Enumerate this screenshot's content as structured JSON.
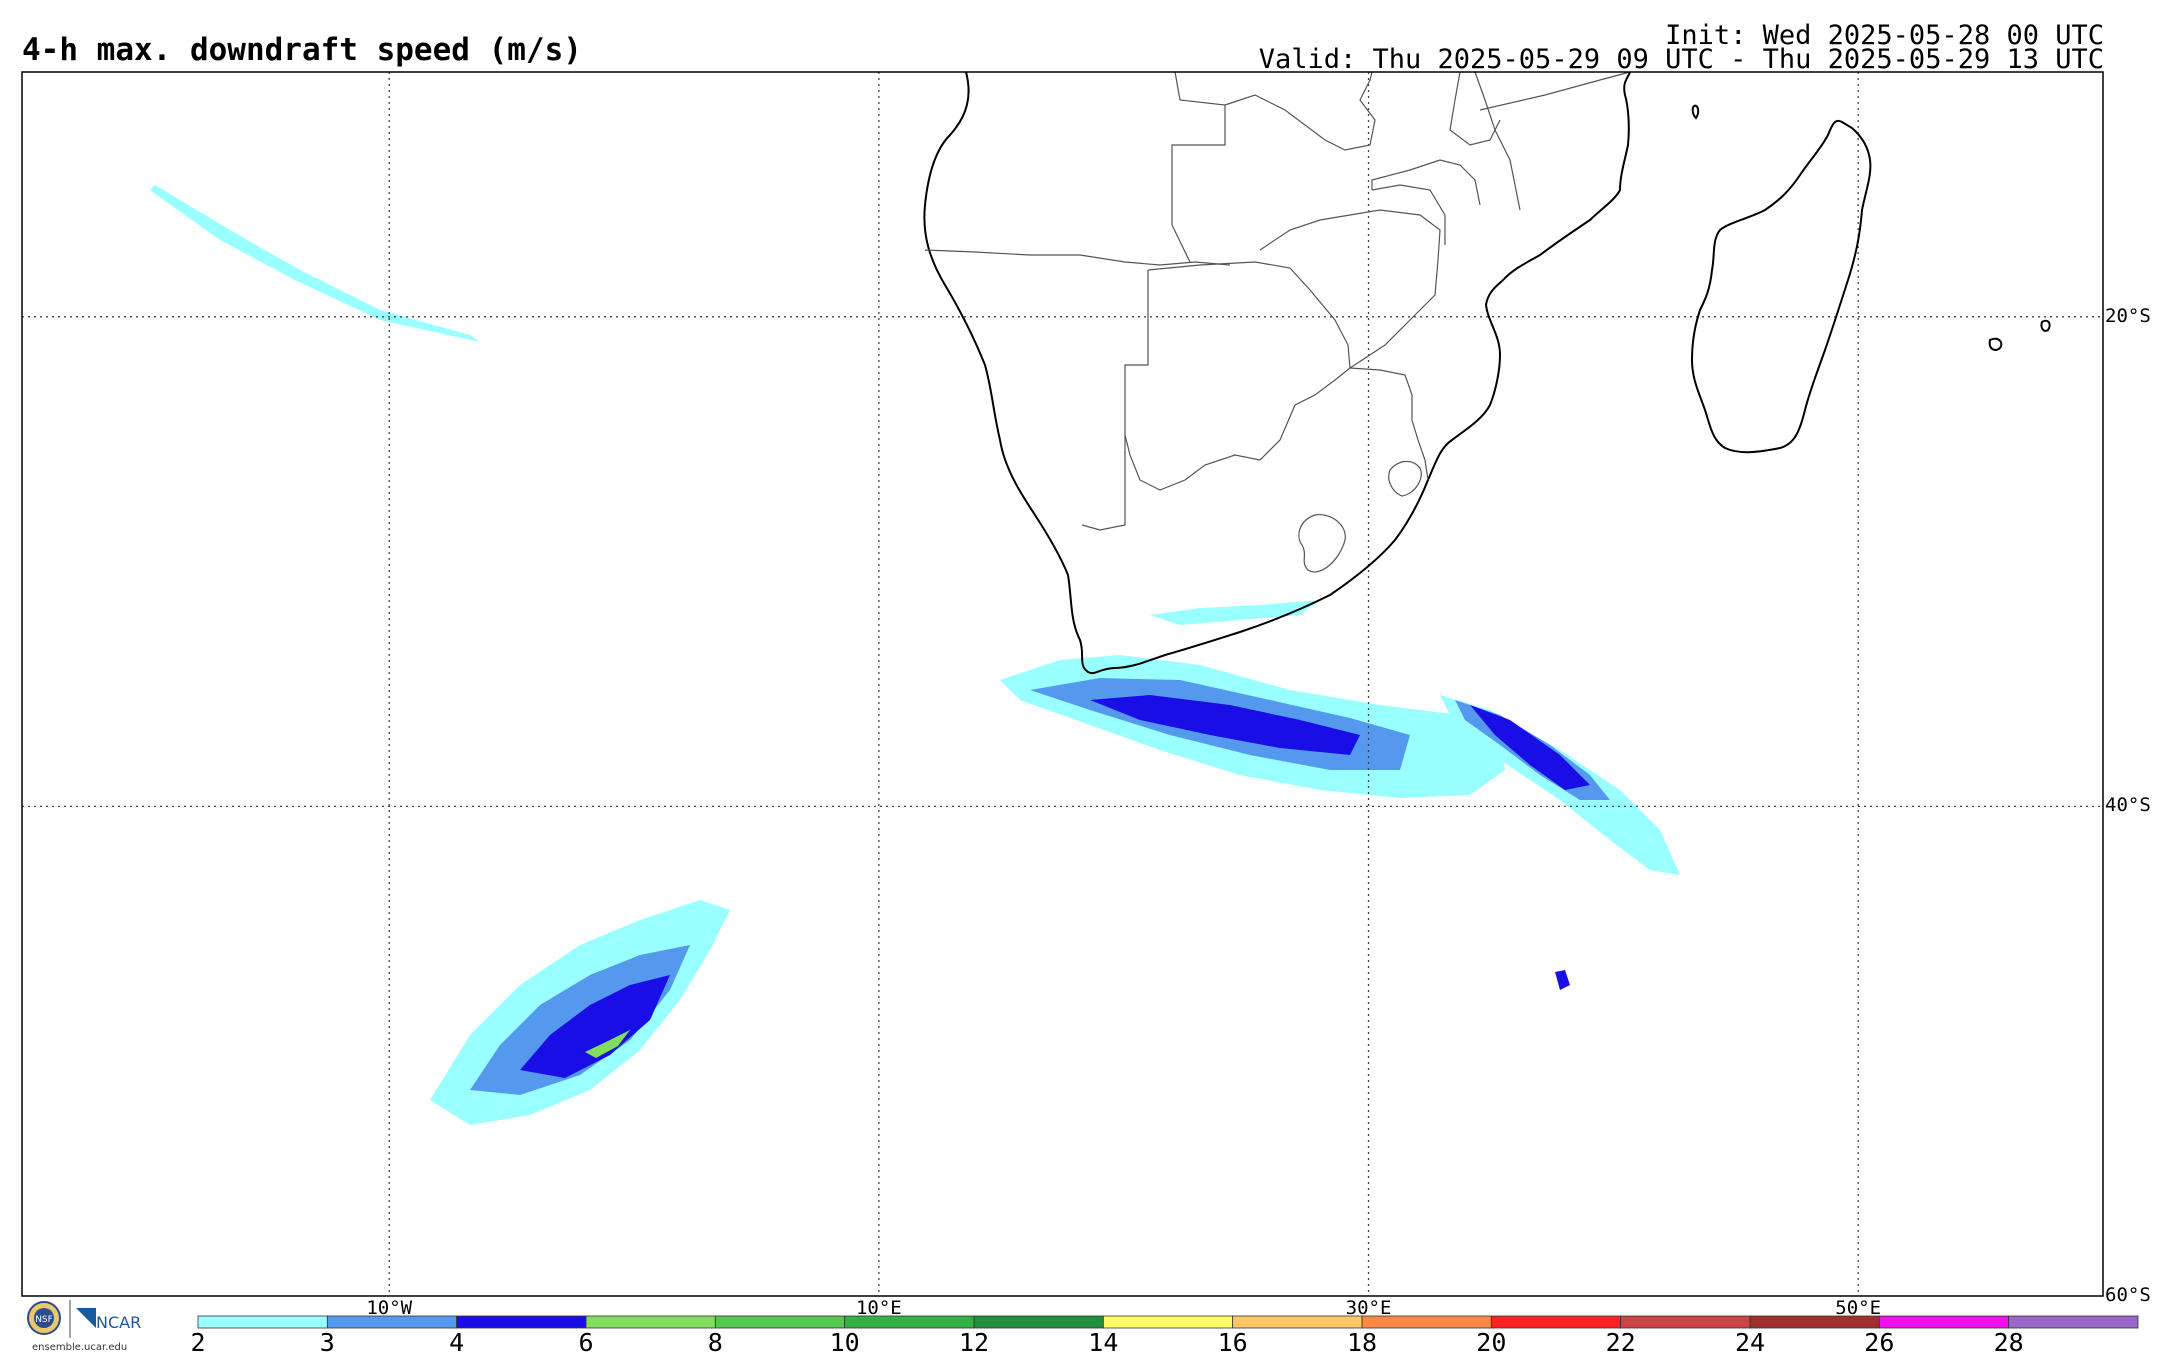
{
  "header": {
    "title": "4-h max. downdraft speed (m/s)",
    "init": "Init: Wed 2025-05-28 00 UTC",
    "valid": "Valid: Thu 2025-05-29 09 UTC - Thu 2025-05-29 13 UTC"
  },
  "map": {
    "lon_range": [
      -25,
      60
    ],
    "lat_range": [
      -60,
      -10
    ],
    "lat_lines": [
      {
        "value": -20,
        "label": "20°S"
      },
      {
        "value": -40,
        "label": "40°S"
      },
      {
        "value": -60,
        "label": "60°S"
      }
    ],
    "lon_lines": [
      {
        "value": -10,
        "label": "10°W"
      },
      {
        "value": 10,
        "label": "10°E"
      },
      {
        "value": 30,
        "label": "30°E"
      },
      {
        "value": 50,
        "label": "50°E"
      }
    ]
  },
  "colorbar": {
    "levels": [
      2,
      3,
      4,
      6,
      8,
      10,
      12,
      14,
      16,
      18,
      20,
      22,
      24,
      26,
      28
    ],
    "tick_labels": [
      "2",
      "3",
      "4",
      "6",
      "8",
      "10",
      "12",
      "14",
      "16",
      "18",
      "20",
      "22",
      "24",
      "26",
      "28"
    ],
    "colors": [
      "#99ffff",
      "#5599ee",
      "#1a0ee6",
      "#80dd60",
      "#55c850",
      "#35b043",
      "#20903c",
      "#ffff66",
      "#ffc866",
      "#ff8844",
      "#ff2222",
      "#cc4444",
      "#a03030",
      "#ee11ee",
      "#9966cc"
    ]
  },
  "logo": {
    "org1": "NSF",
    "org2": "NCAR",
    "url": "ensemble.ucar.edu"
  }
}
